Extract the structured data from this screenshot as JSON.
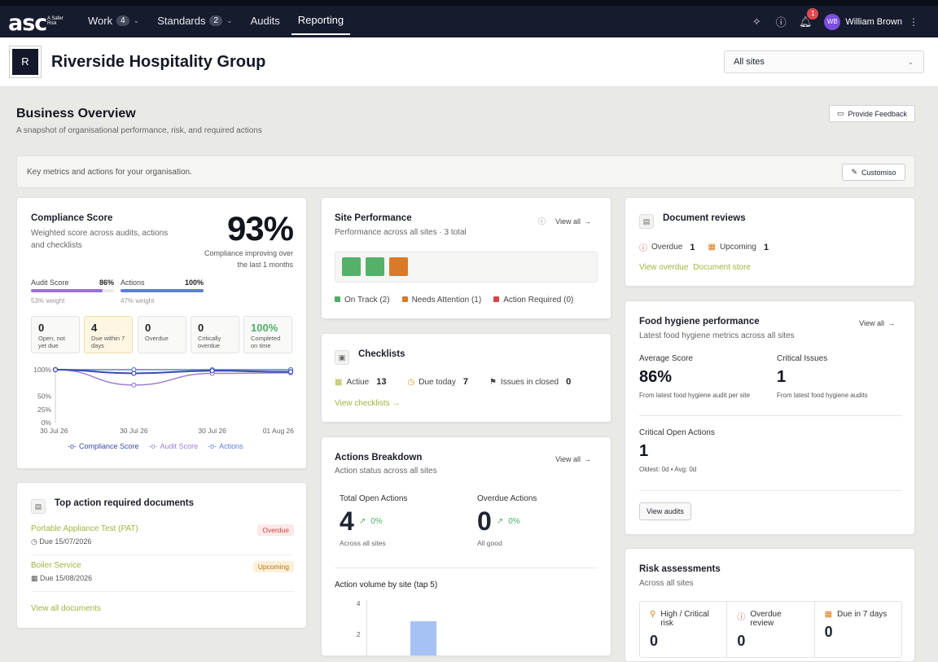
{
  "app": {
    "logo": "asc",
    "logo_tag": "A Safer Risk"
  },
  "nav": [
    {
      "label": "Work",
      "badge": "4"
    },
    {
      "label": "Standards",
      "badge": "2"
    },
    {
      "label": "Audits",
      "badge": ""
    },
    {
      "label": "Reporting",
      "badge": ""
    }
  ],
  "user": {
    "initials": "WB",
    "name": "William Brown",
    "notifications": "1"
  },
  "org": {
    "initial": "R",
    "name": "Riverside Hospitality Group"
  },
  "site_select": {
    "value": "All sites"
  },
  "overview": {
    "title": "Business Overview",
    "subtitle": "A snapshot of organisational performance, risk, and required actions",
    "feedback_label": "Provide Feedback",
    "metrics_text": "Key metrics and actions for your organisation.",
    "customise_label": "Customiso"
  },
  "compliance": {
    "title": "Compliance Score",
    "subtitle": "Weighted score across audits, actions and checklists",
    "score": "93%",
    "caption": "Compliance improving over the last 1 months",
    "audit_label": "Audit Score",
    "audit_value": "86%",
    "audit_fraction": 0.86,
    "audit_weight": "53% weight",
    "actions_label": "Actions",
    "actions_value": "100%",
    "actions_fraction": 1.0,
    "actions_weight": "47% weight",
    "stats": [
      {
        "n": "0",
        "l": "Open, not yet due"
      },
      {
        "n": "4",
        "l": "Due within 7 days"
      },
      {
        "n": "0",
        "l": "Overdue"
      },
      {
        "n": "0",
        "l": "Critically overdue"
      },
      {
        "n": "100%",
        "l": "Completed on time"
      }
    ]
  },
  "chart_data": {
    "type": "line",
    "x": [
      "30 Jul 26",
      "30 Jul 26",
      "30 Jul 26",
      "01 Aug 26"
    ],
    "y_ticks": [
      "100%",
      "50%",
      "25%",
      "0%"
    ],
    "ylim": [
      0,
      100
    ],
    "series": [
      {
        "name": "Compliance Score",
        "values": [
          100,
          93,
          98,
          96
        ],
        "color": "#3a4aa8"
      },
      {
        "name": "Audit Score",
        "values": [
          100,
          71,
          93,
          94
        ],
        "color": "#9a7fd6"
      },
      {
        "name": "Actions",
        "values": [
          100,
          100,
          100,
          100
        ],
        "color": "#5a7fd9"
      }
    ]
  },
  "site_perf": {
    "title": "Site Performance",
    "subtitle": "Performance across all sites · 3 total",
    "view_all": "View all",
    "legend": [
      {
        "label": "On Track (2)",
        "color": "#4caf68"
      },
      {
        "label": "Needs Attention (1)",
        "color": "#d97a2b"
      },
      {
        "label": "Action Required (0)",
        "color": "#d64545"
      }
    ]
  },
  "checklists": {
    "title": "Checklists",
    "active_label": "Actiue",
    "active_value": "13",
    "due_label": "Due today",
    "due_value": "7",
    "issues_label": "Issues in closed",
    "issues_value": "0",
    "link": "View checklists →"
  },
  "actions_breakdown": {
    "title": "Actions Breakdown",
    "subtitle": "Action status across all sites",
    "view_all": "View all",
    "total_label": "Total Open Actions",
    "total_value": "4",
    "total_trend": "0%",
    "total_sub": "Across all sites",
    "overdue_label": "Overdue Actions",
    "overdue_value": "0",
    "overdue_trend": "0%",
    "overdue_sub": "All good",
    "volume_title": "Action volume by site (tap 5)",
    "y_ticks": [
      "4",
      "2"
    ]
  },
  "top_docs": {
    "title": "Top action required documents",
    "items": [
      {
        "name": "Portable Appliance Test (PAT)",
        "due": "Due 15/07/2026",
        "tag": "Overdue"
      },
      {
        "name": "Boiler Service",
        "due": "Due 15/08/2026",
        "tag": "Upcoming"
      }
    ],
    "link": "View all documents"
  },
  "doc_reviews": {
    "title": "Document reviews",
    "overdue_label": "Overdue",
    "overdue_value": "1",
    "upcoming_label": "Upcoming",
    "upcoming_value": "1",
    "link1": "View overdue",
    "link2": "Document store"
  },
  "food": {
    "title": "Food hygiene performance",
    "subtitle": "Latest food hygiene metrics across all sites",
    "view_all": "View all",
    "avg_label": "Average Score",
    "avg_value": "86%",
    "avg_sub": "From latest food hygiene audit per site",
    "crit_label": "Critical Issues",
    "crit_value": "1",
    "crit_sub": "From latest food hygiene audits",
    "open_label": "Critical Open Actions",
    "open_value": "1",
    "open_sub": "Oldest: 0d • Avg: 0d",
    "button": "View audits"
  },
  "risk": {
    "title": "Risk assessments",
    "subtitle": "Across all sites",
    "cells": [
      {
        "label": "High / Critical risk",
        "value": "0"
      },
      {
        "label": "Overdue review",
        "value": "0"
      },
      {
        "label": "Due in 7 days",
        "value": "0"
      }
    ]
  }
}
